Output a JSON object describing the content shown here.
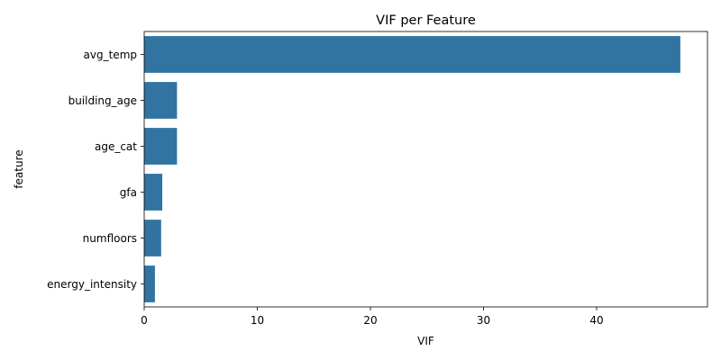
{
  "chart_data": {
    "type": "bar",
    "orientation": "horizontal",
    "title": "VIF per Feature",
    "xlabel": "VIF",
    "ylabel": "feature",
    "categories": [
      "avg_temp",
      "building_age",
      "age_cat",
      "gfa",
      "numfloors",
      "energy_intensity"
    ],
    "values": [
      47.4,
      2.9,
      2.9,
      1.6,
      1.5,
      0.95
    ],
    "xlim": [
      0,
      49.8
    ],
    "xticks": [
      0,
      10,
      20,
      30,
      40
    ],
    "grid": false,
    "legend": "none",
    "bar_color": "#3274a1"
  }
}
